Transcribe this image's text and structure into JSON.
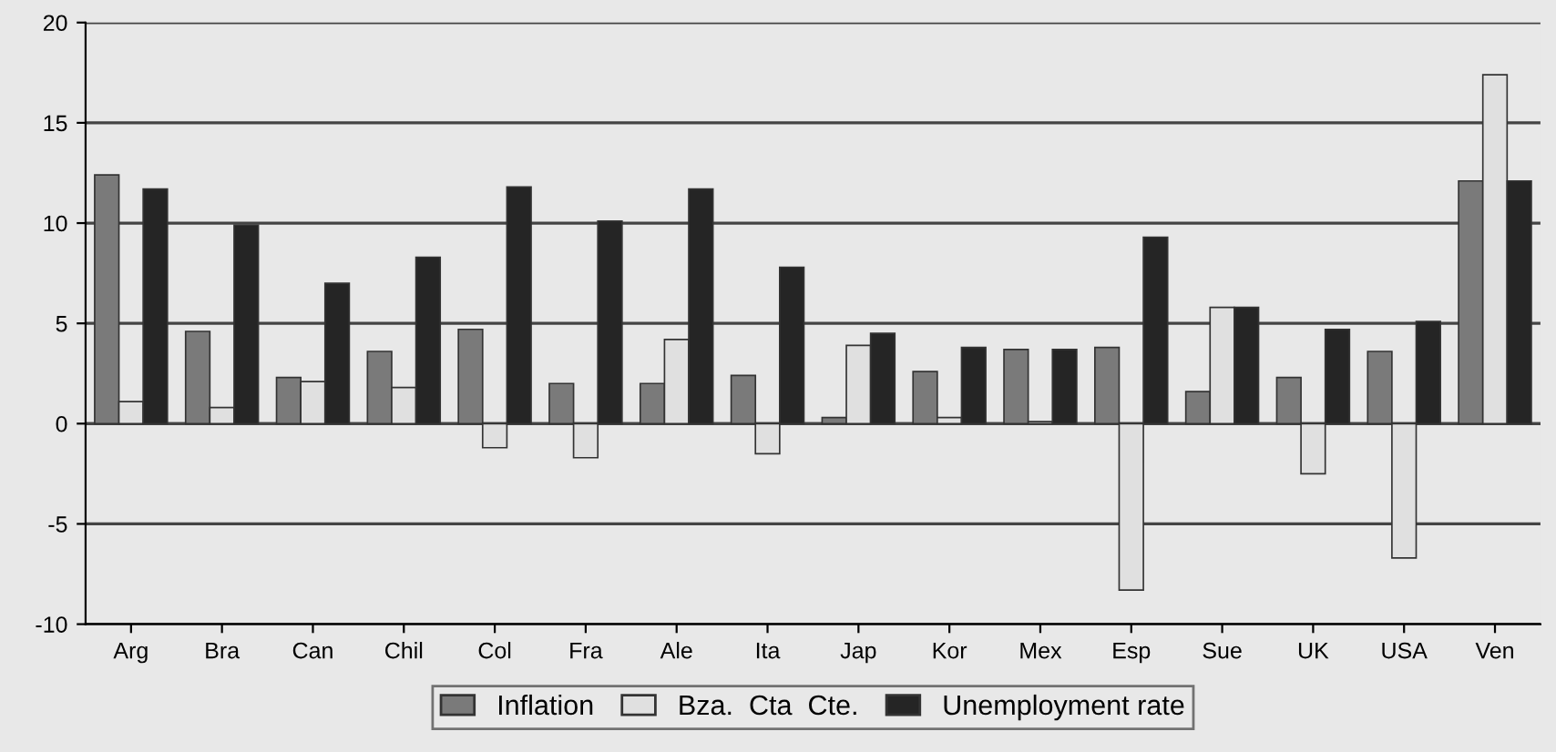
{
  "chart_data": {
    "type": "bar",
    "categories": [
      "Arg",
      "Bra",
      "Can",
      "Chil",
      "Col",
      "Fra",
      "Ale",
      "Ita",
      "Jap",
      "Kor",
      "Mex",
      "Esp",
      "Sue",
      "UK",
      "USA",
      "Ven"
    ],
    "series": [
      {
        "name": "Inflation",
        "color": "#7a7a7a",
        "values": [
          12.4,
          4.6,
          2.3,
          3.6,
          4.7,
          2.0,
          2.0,
          2.4,
          0.3,
          2.6,
          3.7,
          3.8,
          1.6,
          2.3,
          3.6,
          12.1
        ]
      },
      {
        "name": "Bza.  Cta  Cte.",
        "color": "#e0e0e0",
        "values": [
          1.1,
          0.8,
          2.1,
          1.8,
          -1.2,
          -1.7,
          4.2,
          -1.5,
          3.9,
          0.3,
          0.1,
          -8.3,
          5.8,
          -2.5,
          -6.7,
          17.4
        ]
      },
      {
        "name": "Unemployment rate",
        "color": "#252525",
        "values": [
          11.7,
          9.9,
          7.0,
          8.3,
          11.8,
          10.1,
          11.7,
          7.8,
          4.5,
          3.8,
          3.7,
          9.3,
          5.8,
          4.7,
          5.1,
          12.1
        ]
      }
    ],
    "ylim": [
      -10,
      20
    ],
    "yticks": [
      -10,
      -5,
      0,
      5,
      10,
      15,
      20
    ],
    "grid": "y",
    "legend": "bottom"
  }
}
